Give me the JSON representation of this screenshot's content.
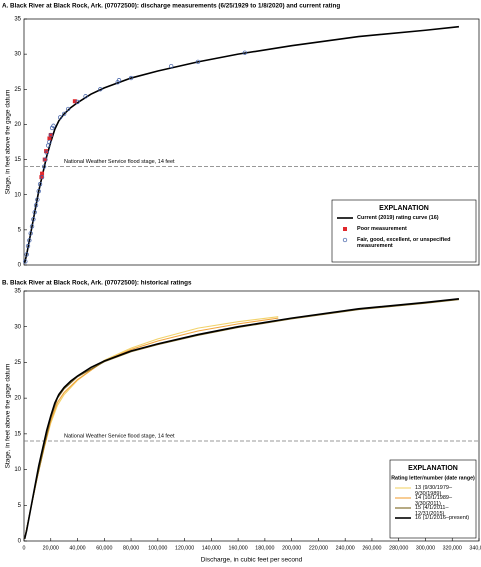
{
  "chart_data": [
    {
      "type": "line",
      "title": "A. Black River at Black Rock, Ark. (07072500): discharge measurements (6/25/1929 to 1/8/2020) and current rating",
      "y_label": "Stage, in feet above the gage datum",
      "annotation": "National Weather Service flood stage, 14 feet",
      "flood_stage": 14,
      "legend_title": "EXPLANATION",
      "legend": "lower right",
      "xlim": [
        0,
        340000
      ],
      "ylim": [
        0,
        35
      ],
      "yticks": [
        0,
        5,
        10,
        15,
        20,
        25,
        30,
        35
      ],
      "series": [
        {
          "name": "Current (2019) rating curve (16)",
          "color": "#000000",
          "marker": "none",
          "x": [
            500,
            2000,
            5000,
            8000,
            11000,
            14000,
            17000,
            20000,
            23000,
            26000,
            30000,
            35000,
            40000,
            50000,
            60000,
            80000,
            100000,
            130000,
            160000,
            200000,
            250000,
            300000,
            325000
          ],
          "values": [
            0.3,
            1.5,
            4.5,
            7.5,
            10.5,
            13,
            15.5,
            17.5,
            19.3,
            20.5,
            21.5,
            22.4,
            23.1,
            24.3,
            25.2,
            26.6,
            27.6,
            28.9,
            30,
            31.2,
            32.5,
            33.4,
            33.9
          ]
        },
        {
          "name": "Poor measurement",
          "color": "#e0282c",
          "marker": "square",
          "x": [
            13000,
            13500,
            15500,
            16500,
            19000,
            20000,
            38000
          ],
          "values": [
            12.5,
            13,
            15,
            16.2,
            18,
            18.5,
            23.3
          ]
        },
        {
          "name": "Fair, good, excellent, or unspecified measurement",
          "color": "#3b5ba5",
          "marker": "circle",
          "x": [
            1000,
            2000,
            3000,
            4000,
            5000,
            6000,
            7000,
            8000,
            9000,
            10000,
            11000,
            12000,
            13500,
            15000,
            16000,
            17000,
            18000,
            19000,
            20000,
            21000,
            22000,
            27000,
            30000,
            33000,
            40000,
            46000,
            57000,
            70000,
            71000,
            80000,
            110000,
            130000,
            165000
          ],
          "values": [
            0.5,
            1.5,
            2.7,
            3.5,
            4.5,
            5.5,
            6.5,
            7.5,
            8.5,
            9.3,
            10.5,
            11.5,
            12.5,
            14,
            15,
            16,
            17,
            17.5,
            18.5,
            19.5,
            19.8,
            21,
            21.5,
            22.2,
            23.2,
            24,
            25,
            26,
            26.3,
            26.6,
            28.3,
            28.9,
            30.2
          ]
        }
      ]
    },
    {
      "type": "line",
      "title": "B. Black River at Black Rock, Ark. (07072500): historical ratings",
      "y_label": "Stage, in feet above the gage datum",
      "x_label": "Discharge, in cubic feet per second",
      "annotation": "National Weather Service flood stage, 14 feet",
      "flood_stage": 14,
      "legend_title": "EXPLANATION",
      "legend_subtitle": "Rating letter/number (date range)",
      "legend": "lower right",
      "xlim": [
        0,
        340000
      ],
      "xticks": [
        0,
        {
          "value": 20000,
          "label": "20,000"
        },
        {
          "value": 40000,
          "label": "40,000"
        },
        {
          "value": 60000,
          "label": "60,000"
        },
        {
          "value": 80000,
          "label": "80,000"
        },
        {
          "value": 100000,
          "label": "100,000"
        },
        {
          "value": 120000,
          "label": "120,000"
        },
        {
          "value": 140000,
          "label": "140,000"
        },
        {
          "value": 160000,
          "label": "160,000"
        },
        {
          "value": 180000,
          "label": "180,000"
        },
        {
          "value": 200000,
          "label": "200,000"
        },
        {
          "value": 220000,
          "label": "220,000"
        },
        {
          "value": 240000,
          "label": "240,000"
        },
        {
          "value": 260000,
          "label": "260,000"
        },
        {
          "value": 280000,
          "label": "280,000"
        },
        {
          "value": 300000,
          "label": "300,000"
        },
        {
          "value": 320000,
          "label": "320,000"
        },
        {
          "value": 340000,
          "label": "340,000"
        }
      ],
      "ylim": [
        0,
        35
      ],
      "yticks": [
        0,
        5,
        10,
        15,
        20,
        25,
        30,
        35
      ],
      "series": [
        {
          "name": "13 (9/30/1979–9/30/1989)",
          "color": "#f2d36b",
          "marker": "none",
          "x": [
            500,
            5000,
            10000,
            15000,
            20000,
            25000,
            30000,
            40000,
            60000,
            80000,
            100000,
            130000,
            160000,
            190000
          ],
          "values": [
            0.3,
            4.5,
            9,
            13,
            16.5,
            19,
            20.5,
            22.5,
            25.3,
            27,
            28.3,
            29.8,
            30.7,
            31.4
          ]
        },
        {
          "name": "14 (10/1/1989–3/30/2011)",
          "color": "#f0a33c",
          "marker": "none",
          "x": [
            500,
            5000,
            10000,
            15000,
            20000,
            25000,
            30000,
            40000,
            60000,
            80000,
            100000,
            130000,
            160000,
            190000
          ],
          "values": [
            0.3,
            4.5,
            9,
            13,
            16.8,
            19.4,
            20.8,
            22.6,
            25.2,
            26.8,
            28,
            29.4,
            30.4,
            31.2
          ]
        },
        {
          "name": "15 (4/1/2011–12/31/2015)",
          "color": "#7a6320",
          "marker": "none",
          "x": [
            500,
            5000,
            10000,
            15000,
            20000,
            25000,
            30000,
            40000,
            60000,
            80000,
            100000,
            130000,
            160000,
            200000,
            250000,
            300000,
            325000
          ],
          "values": [
            0.3,
            4.5,
            9,
            13.2,
            17.2,
            20,
            21.3,
            23,
            25.1,
            26.5,
            27.5,
            28.8,
            29.9,
            31.1,
            32.4,
            33.3,
            33.8
          ]
        },
        {
          "name": "16 (1/1/2016–present)",
          "color": "#000000",
          "marker": "none",
          "x": [
            500,
            2000,
            5000,
            8000,
            11000,
            14000,
            17000,
            20000,
            23000,
            26000,
            30000,
            35000,
            40000,
            50000,
            60000,
            80000,
            100000,
            130000,
            160000,
            200000,
            250000,
            300000,
            325000
          ],
          "values": [
            0.3,
            1.5,
            4.5,
            7.5,
            10.5,
            13,
            15.5,
            17.5,
            19.3,
            20.5,
            21.5,
            22.4,
            23.1,
            24.3,
            25.2,
            26.6,
            27.6,
            28.9,
            30,
            31.2,
            32.5,
            33.4,
            33.9
          ]
        }
      ]
    }
  ]
}
